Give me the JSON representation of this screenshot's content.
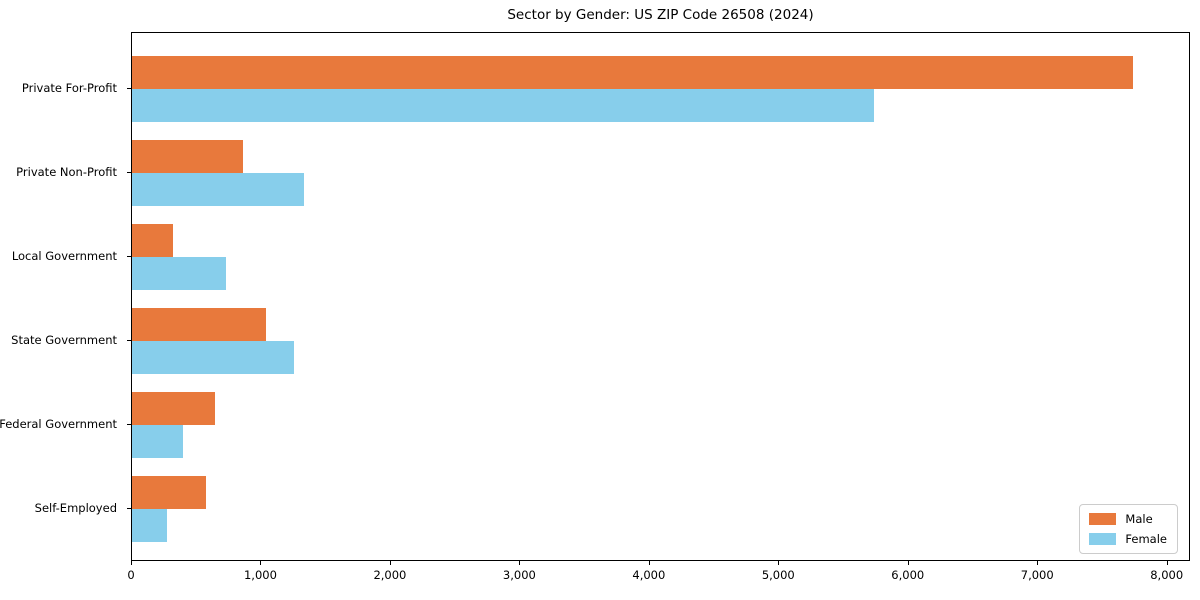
{
  "chart_data": {
    "type": "bar",
    "orientation": "horizontal",
    "title": "Sector by Gender: US ZIP Code 26508 (2024)",
    "xlabel": "",
    "ylabel": "",
    "categories": [
      "Private For-Profit",
      "Private Non-Profit",
      "Local Government",
      "State Government",
      "Federal Government",
      "Self-Employed"
    ],
    "series": [
      {
        "name": "Male",
        "color": "#E8793C",
        "values": [
          7750,
          860,
          320,
          1040,
          640,
          570
        ]
      },
      {
        "name": "Female",
        "color": "#87CEEB",
        "values": [
          5740,
          1330,
          730,
          1250,
          395,
          270
        ]
      }
    ],
    "xlim": [
      0,
      8180
    ],
    "xticks": [
      0,
      1000,
      2000,
      3000,
      4000,
      5000,
      6000,
      7000,
      8000
    ],
    "xtick_labels": [
      "0",
      "1,000",
      "2,000",
      "3,000",
      "4,000",
      "5,000",
      "6,000",
      "7,000",
      "8,000"
    ],
    "grid": false,
    "legend_position": "lower right",
    "plot_border_color": "#000000",
    "background_color": "#ffffff"
  }
}
